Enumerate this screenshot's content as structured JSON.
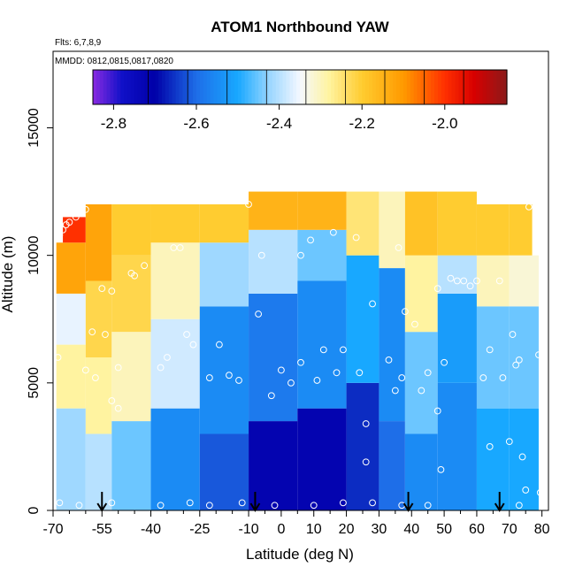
{
  "chart_data": {
    "type": "heatmap",
    "title": "ATOM1 Northbound YAW",
    "annotations": {
      "flights": "Flts: 6,7,8,9",
      "dates": "MMDD: 0812,0815,0817,0820"
    },
    "xlabel": "Latitude (deg N)",
    "ylabel": "Altitude (m)",
    "xlim": [
      -70,
      82
    ],
    "ylim": [
      0,
      18000
    ],
    "x_ticks": [
      -70,
      -55,
      -40,
      -25,
      -10,
      0,
      10,
      20,
      30,
      40,
      50,
      60,
      70,
      80
    ],
    "x_tick_labels": [
      "-70",
      "-55",
      "-40",
      "-25",
      "-10",
      "0",
      "10",
      "20",
      "30",
      "40",
      "50",
      "60",
      "70",
      "80"
    ],
    "y_ticks": [
      0,
      5000,
      10000,
      15000
    ],
    "y_tick_labels": [
      "0",
      "5000",
      "10000",
      "15000"
    ],
    "colorbar": {
      "range": [
        -2.85,
        -1.85
      ],
      "ticks": [
        -2.8,
        -2.6,
        -2.4,
        -2.2,
        -2.0
      ],
      "tick_labels": [
        "-2.8",
        "-2.6",
        "-2.4",
        "-2.2",
        "-2.0"
      ],
      "stops": [
        {
          "v": -2.85,
          "c": "#8a2be2"
        },
        {
          "v": -2.78,
          "c": "#1010c8"
        },
        {
          "v": -2.7,
          "c": "#0000a8"
        },
        {
          "v": -2.6,
          "c": "#1e6ee8"
        },
        {
          "v": -2.5,
          "c": "#18a8ff"
        },
        {
          "v": -2.42,
          "c": "#9fd8ff"
        },
        {
          "v": -2.35,
          "c": "#f4f8ff"
        },
        {
          "v": -2.28,
          "c": "#fff3a0"
        },
        {
          "v": -2.2,
          "c": "#ffcc30"
        },
        {
          "v": -2.1,
          "c": "#ff9a00"
        },
        {
          "v": -2.0,
          "c": "#ff3000"
        },
        {
          "v": -1.93,
          "c": "#d80000"
        },
        {
          "v": -1.85,
          "c": "#8b1a1a"
        }
      ]
    },
    "grid": false,
    "field_regions": [
      {
        "lat": [
          -69,
          -60
        ],
        "alt": [
          0,
          4000
        ],
        "value": -2.42
      },
      {
        "lat": [
          -69,
          -60
        ],
        "alt": [
          4000,
          6500
        ],
        "value": -2.28
      },
      {
        "lat": [
          -69,
          -60
        ],
        "alt": [
          6500,
          8500
        ],
        "value": -2.36
      },
      {
        "lat": [
          -69,
          -60
        ],
        "alt": [
          8500,
          10500
        ],
        "value": -2.12
      },
      {
        "lat": [
          -67,
          -60
        ],
        "alt": [
          10500,
          11500
        ],
        "value": -2.0
      },
      {
        "lat": [
          -60,
          -52
        ],
        "alt": [
          0,
          3000
        ],
        "value": -2.4
      },
      {
        "lat": [
          -60,
          -52
        ],
        "alt": [
          3000,
          6000
        ],
        "value": -2.28
      },
      {
        "lat": [
          -60,
          -52
        ],
        "alt": [
          6000,
          9000
        ],
        "value": -2.22
      },
      {
        "lat": [
          -60,
          -52
        ],
        "alt": [
          9000,
          12000
        ],
        "value": -2.12
      },
      {
        "lat": [
          -52,
          -40
        ],
        "alt": [
          0,
          3500
        ],
        "value": -2.45
      },
      {
        "lat": [
          -52,
          -40
        ],
        "alt": [
          3500,
          7000
        ],
        "value": -2.3
      },
      {
        "lat": [
          -52,
          -40
        ],
        "alt": [
          7000,
          10000
        ],
        "value": -2.22
      },
      {
        "lat": [
          -52,
          -40
        ],
        "alt": [
          10000,
          12000
        ],
        "value": -2.2
      },
      {
        "lat": [
          -40,
          -25
        ],
        "alt": [
          0,
          4000
        ],
        "value": -2.55
      },
      {
        "lat": [
          -40,
          -25
        ],
        "alt": [
          4000,
          7500
        ],
        "value": -2.38
      },
      {
        "lat": [
          -40,
          -25
        ],
        "alt": [
          7500,
          10500
        ],
        "value": -2.3
      },
      {
        "lat": [
          -40,
          -25
        ],
        "alt": [
          10500,
          12000
        ],
        "value": -2.2
      },
      {
        "lat": [
          -25,
          -10
        ],
        "alt": [
          0,
          3000
        ],
        "value": -2.62
      },
      {
        "lat": [
          -25,
          -10
        ],
        "alt": [
          3000,
          8000
        ],
        "value": -2.55
      },
      {
        "lat": [
          -25,
          -10
        ],
        "alt": [
          8000,
          10500
        ],
        "value": -2.42
      },
      {
        "lat": [
          -25,
          -10
        ],
        "alt": [
          10500,
          12000
        ],
        "value": -2.2
      },
      {
        "lat": [
          -10,
          5
        ],
        "alt": [
          0,
          3500
        ],
        "value": -2.72
      },
      {
        "lat": [
          -10,
          5
        ],
        "alt": [
          3500,
          8500
        ],
        "value": -2.58
      },
      {
        "lat": [
          -10,
          5
        ],
        "alt": [
          8500,
          11000
        ],
        "value": -2.4
      },
      {
        "lat": [
          -10,
          5
        ],
        "alt": [
          11000,
          12500
        ],
        "value": -2.15
      },
      {
        "lat": [
          5,
          20
        ],
        "alt": [
          0,
          4000
        ],
        "value": -2.72
      },
      {
        "lat": [
          5,
          20
        ],
        "alt": [
          4000,
          9000
        ],
        "value": -2.55
      },
      {
        "lat": [
          5,
          20
        ],
        "alt": [
          9000,
          11000
        ],
        "value": -2.45
      },
      {
        "lat": [
          5,
          20
        ],
        "alt": [
          11000,
          12500
        ],
        "value": -2.15
      },
      {
        "lat": [
          20,
          30
        ],
        "alt": [
          0,
          5000
        ],
        "value": -2.66
      },
      {
        "lat": [
          20,
          30
        ],
        "alt": [
          5000,
          10000
        ],
        "value": -2.5
      },
      {
        "lat": [
          20,
          30
        ],
        "alt": [
          10000,
          12500
        ],
        "value": -2.25
      },
      {
        "lat": [
          30,
          38
        ],
        "alt": [
          0,
          3500
        ],
        "value": -2.6
      },
      {
        "lat": [
          30,
          38
        ],
        "alt": [
          3500,
          9500
        ],
        "value": -2.55
      },
      {
        "lat": [
          30,
          38
        ],
        "alt": [
          9500,
          12500
        ],
        "value": -2.3
      },
      {
        "lat": [
          38,
          48
        ],
        "alt": [
          0,
          3000
        ],
        "value": -2.55
      },
      {
        "lat": [
          38,
          48
        ],
        "alt": [
          3000,
          7000
        ],
        "value": -2.45
      },
      {
        "lat": [
          38,
          48
        ],
        "alt": [
          7000,
          10000
        ],
        "value": -2.28
      },
      {
        "lat": [
          38,
          48
        ],
        "alt": [
          10000,
          12500
        ],
        "value": -2.18
      },
      {
        "lat": [
          48,
          60
        ],
        "alt": [
          0,
          5000
        ],
        "value": -2.55
      },
      {
        "lat": [
          48,
          60
        ],
        "alt": [
          5000,
          8500
        ],
        "value": -2.52
      },
      {
        "lat": [
          48,
          60
        ],
        "alt": [
          8500,
          10000
        ],
        "value": -2.4
      },
      {
        "lat": [
          48,
          60
        ],
        "alt": [
          10000,
          12500
        ],
        "value": -2.2
      },
      {
        "lat": [
          60,
          70
        ],
        "alt": [
          0,
          4000
        ],
        "value": -2.5
      },
      {
        "lat": [
          60,
          70
        ],
        "alt": [
          4000,
          8000
        ],
        "value": -2.45
      },
      {
        "lat": [
          60,
          70
        ],
        "alt": [
          8000,
          10000
        ],
        "value": -2.3
      },
      {
        "lat": [
          60,
          70
        ],
        "alt": [
          10000,
          12000
        ],
        "value": -2.2
      },
      {
        "lat": [
          70,
          79
        ],
        "alt": [
          0,
          4000
        ],
        "value": -2.5
      },
      {
        "lat": [
          70,
          79
        ],
        "alt": [
          4000,
          8000
        ],
        "value": -2.45
      },
      {
        "lat": [
          70,
          79
        ],
        "alt": [
          8000,
          10000
        ],
        "value": -2.32
      },
      {
        "lat": [
          70,
          77
        ],
        "alt": [
          10000,
          12000
        ],
        "value": -2.2
      }
    ],
    "samples": [
      {
        "lat": -68.5,
        "alt": 6000
      },
      {
        "lat": -68,
        "alt": 10800
      },
      {
        "lat": -67,
        "alt": 11000
      },
      {
        "lat": -66,
        "alt": 11200
      },
      {
        "lat": -65,
        "alt": 11300
      },
      {
        "lat": -63,
        "alt": 11500
      },
      {
        "lat": -60,
        "alt": 11800
      },
      {
        "lat": -58,
        "alt": 7000
      },
      {
        "lat": -60,
        "alt": 5500
      },
      {
        "lat": -57,
        "alt": 5200
      },
      {
        "lat": -54,
        "alt": 6900
      },
      {
        "lat": -52,
        "alt": 4300
      },
      {
        "lat": -55,
        "alt": 8700
      },
      {
        "lat": -52,
        "alt": 8600
      },
      {
        "lat": -50,
        "alt": 5600
      },
      {
        "lat": -50,
        "alt": 4000
      },
      {
        "lat": -45,
        "alt": 9200
      },
      {
        "lat": -46,
        "alt": 9300
      },
      {
        "lat": -42,
        "alt": 9600
      },
      {
        "lat": -37,
        "alt": 5600
      },
      {
        "lat": -35,
        "alt": 6000
      },
      {
        "lat": -33,
        "alt": 10300
      },
      {
        "lat": -31,
        "alt": 10300
      },
      {
        "lat": -29,
        "alt": 6900
      },
      {
        "lat": -27,
        "alt": 6500
      },
      {
        "lat": -22,
        "alt": 5200
      },
      {
        "lat": -19,
        "alt": 6500
      },
      {
        "lat": -16,
        "alt": 5300
      },
      {
        "lat": -13,
        "alt": 5100
      },
      {
        "lat": -10,
        "alt": 12000
      },
      {
        "lat": -7,
        "alt": 7700
      },
      {
        "lat": -6,
        "alt": 10000
      },
      {
        "lat": -3,
        "alt": 4500
      },
      {
        "lat": 0,
        "alt": 5500
      },
      {
        "lat": 3,
        "alt": 5000
      },
      {
        "lat": 6,
        "alt": 10000
      },
      {
        "lat": 6,
        "alt": 5800
      },
      {
        "lat": 9,
        "alt": 10600
      },
      {
        "lat": 11,
        "alt": 5100
      },
      {
        "lat": 13,
        "alt": 6300
      },
      {
        "lat": 16,
        "alt": 10900
      },
      {
        "lat": 17,
        "alt": 5400
      },
      {
        "lat": 19,
        "alt": 6300
      },
      {
        "lat": 23,
        "alt": 10700
      },
      {
        "lat": 24,
        "alt": 5400
      },
      {
        "lat": 26,
        "alt": 3400
      },
      {
        "lat": 26,
        "alt": 1900
      },
      {
        "lat": 28,
        "alt": 8100
      },
      {
        "lat": 33,
        "alt": 5900
      },
      {
        "lat": 35,
        "alt": 4700
      },
      {
        "lat": 36,
        "alt": 10300
      },
      {
        "lat": 37,
        "alt": 5200
      },
      {
        "lat": 38,
        "alt": 7800
      },
      {
        "lat": 41,
        "alt": 7300
      },
      {
        "lat": 43,
        "alt": 4700
      },
      {
        "lat": 45,
        "alt": 5400
      },
      {
        "lat": 48,
        "alt": 3900
      },
      {
        "lat": 48,
        "alt": 8700
      },
      {
        "lat": 49,
        "alt": 1600
      },
      {
        "lat": 50,
        "alt": 5800
      },
      {
        "lat": 52,
        "alt": 9100
      },
      {
        "lat": 54,
        "alt": 9000
      },
      {
        "lat": 56,
        "alt": 9000
      },
      {
        "lat": 58,
        "alt": 8800
      },
      {
        "lat": 60,
        "alt": 9000
      },
      {
        "lat": 62,
        "alt": 5200
      },
      {
        "lat": 64,
        "alt": 2500
      },
      {
        "lat": 64,
        "alt": 6300
      },
      {
        "lat": 67,
        "alt": 9000
      },
      {
        "lat": 68,
        "alt": 5200
      },
      {
        "lat": 70,
        "alt": 2700
      },
      {
        "lat": 71,
        "alt": 6900
      },
      {
        "lat": 72,
        "alt": 5700
      },
      {
        "lat": 73,
        "alt": 5900
      },
      {
        "lat": 74,
        "alt": 2100
      },
      {
        "lat": 75,
        "alt": 800
      },
      {
        "lat": 76,
        "alt": 11900
      },
      {
        "lat": 79,
        "alt": 6100
      },
      {
        "lat": 79.5,
        "alt": 700
      },
      {
        "lat": -68,
        "alt": 300
      },
      {
        "lat": -62,
        "alt": 200
      },
      {
        "lat": -52,
        "alt": 300
      },
      {
        "lat": -37,
        "alt": 200
      },
      {
        "lat": -28,
        "alt": 300
      },
      {
        "lat": -22,
        "alt": 200
      },
      {
        "lat": -12,
        "alt": 300
      },
      {
        "lat": -2,
        "alt": 200
      },
      {
        "lat": 10,
        "alt": 200
      },
      {
        "lat": 19,
        "alt": 300
      },
      {
        "lat": 28,
        "alt": 300
      },
      {
        "lat": 37,
        "alt": 200
      },
      {
        "lat": 45,
        "alt": 200
      },
      {
        "lat": 73,
        "alt": 200
      }
    ],
    "arrows_lat": [
      -55,
      -8,
      39,
      67
    ]
  }
}
